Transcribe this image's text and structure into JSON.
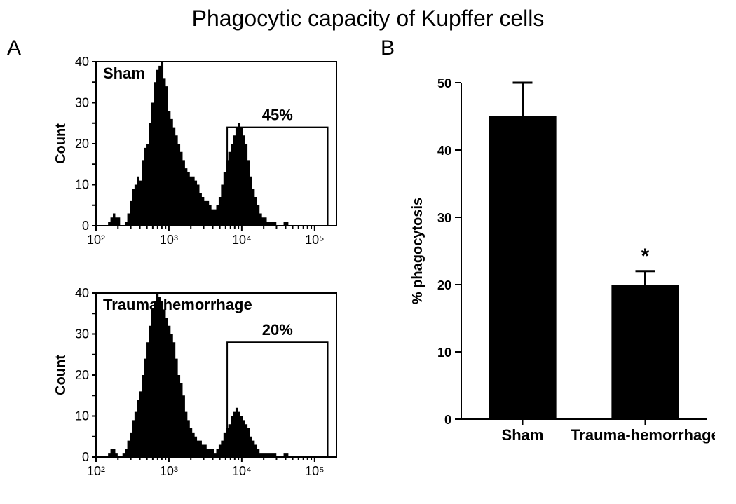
{
  "title": "Phagocytic capacity of Kupffer cells",
  "panelA_label": "A",
  "panelB_label": "B",
  "histograms": {
    "ylabel": "Count",
    "ylim": [
      0,
      40
    ],
    "yticks": [
      0,
      5,
      10,
      15,
      20,
      25,
      30,
      35,
      40
    ],
    "xlim": [
      2,
      5.3
    ],
    "xticks": [
      2,
      3,
      4,
      5
    ],
    "xtick_labels": [
      "10²",
      "10³",
      "10⁴",
      "10⁵"
    ],
    "xscale": "log",
    "sham": {
      "label": "Sham",
      "gate_label": "45%",
      "gate_x0": 3.8,
      "gate_x1": 5.18,
      "gate_y": 24,
      "counts": [
        0,
        0,
        0,
        0,
        0,
        1,
        2,
        3,
        2,
        2,
        0,
        0,
        1,
        3,
        6,
        9,
        10,
        12,
        11,
        16,
        19,
        20,
        25,
        30,
        35,
        38,
        39,
        40,
        36,
        34,
        28,
        26,
        24,
        22,
        20,
        18,
        16,
        14,
        13,
        12,
        12,
        11,
        10,
        8,
        7,
        6,
        6,
        5,
        4,
        4,
        5,
        7,
        10,
        13,
        16,
        18,
        20,
        22,
        24,
        25,
        24,
        22,
        20,
        16,
        12,
        9,
        7,
        5,
        3,
        2,
        2,
        1,
        1,
        1,
        1,
        0,
        0,
        0,
        1,
        1,
        0,
        0,
        0,
        0,
        0,
        0,
        0,
        0,
        0,
        0,
        0,
        0,
        0,
        0,
        0,
        0,
        0,
        0,
        0,
        0,
        0
      ]
    },
    "trauma": {
      "label": "Trauma-hemorrhage",
      "gate_label": "20%",
      "gate_x0": 3.8,
      "gate_x1": 5.18,
      "gate_y": 28,
      "counts": [
        0,
        0,
        0,
        0,
        0,
        1,
        2,
        2,
        1,
        0,
        0,
        1,
        2,
        4,
        6,
        9,
        11,
        14,
        16,
        20,
        24,
        28,
        32,
        36,
        38,
        40,
        39,
        38,
        36,
        34,
        32,
        30,
        28,
        24,
        20,
        18,
        15,
        11,
        9,
        7,
        6,
        5,
        4,
        4,
        3,
        3,
        2,
        2,
        2,
        1,
        2,
        3,
        4,
        6,
        7,
        8,
        10,
        11,
        12,
        11,
        10,
        9,
        8,
        7,
        5,
        4,
        3,
        2,
        1,
        1,
        1,
        1,
        1,
        1,
        1,
        0,
        0,
        0,
        1,
        1,
        0,
        0,
        0,
        0,
        0,
        0,
        0,
        0,
        0,
        0,
        0,
        0,
        0,
        0,
        0,
        0,
        0,
        0,
        0,
        0,
        0
      ]
    }
  },
  "barchart": {
    "ylabel": "% phagocytosis",
    "ylim": [
      0,
      50
    ],
    "yticks": [
      0,
      10,
      20,
      30,
      40,
      50
    ],
    "categories": [
      "Sham",
      "Trauma-hemorrhage"
    ],
    "values": [
      45,
      20
    ],
    "errors": [
      5,
      2
    ],
    "bar_color": "#000000",
    "bar_width": 0.55,
    "significance": {
      "index": 1,
      "symbol": "*"
    },
    "axis_color": "#000000",
    "background_color": "#ffffff",
    "label_fontsize": 20
  }
}
